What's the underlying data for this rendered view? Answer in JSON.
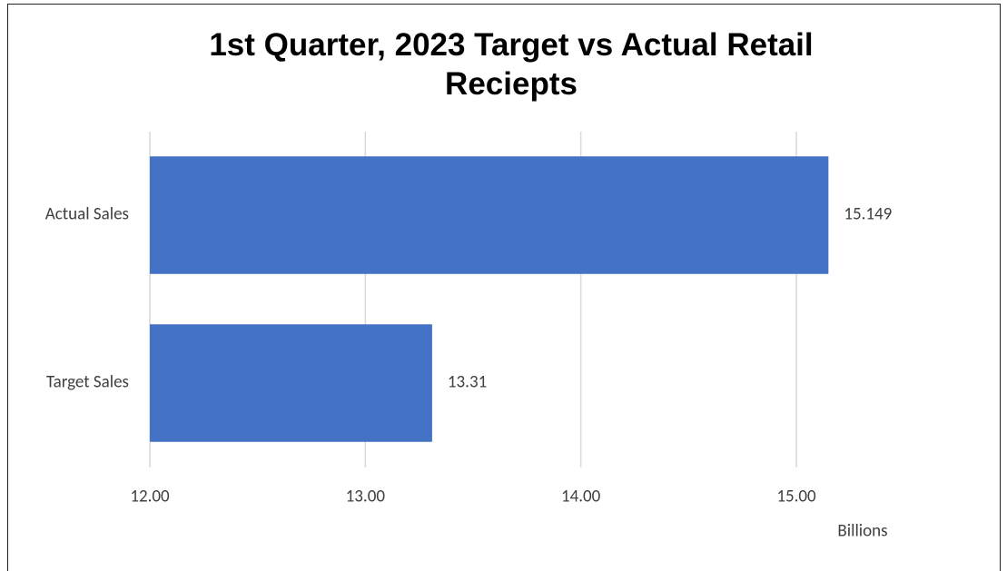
{
  "chart_data": {
    "type": "bar",
    "orientation": "horizontal",
    "title": "1st Quarter, 2023 Target vs Actual Retail Reciepts",
    "categories": [
      "Actual Sales",
      "Target Sales"
    ],
    "values": [
      15.149,
      13.31
    ],
    "color": "#4472c4",
    "xlim": [
      12,
      15.5
    ],
    "xticks": [
      {
        "value": 12,
        "label": "12.00"
      },
      {
        "value": 13,
        "label": "13.00"
      },
      {
        "value": 14,
        "label": "14.00"
      },
      {
        "value": 15,
        "label": "15.00"
      }
    ],
    "x_unit_label": "Billions",
    "grid": true
  }
}
